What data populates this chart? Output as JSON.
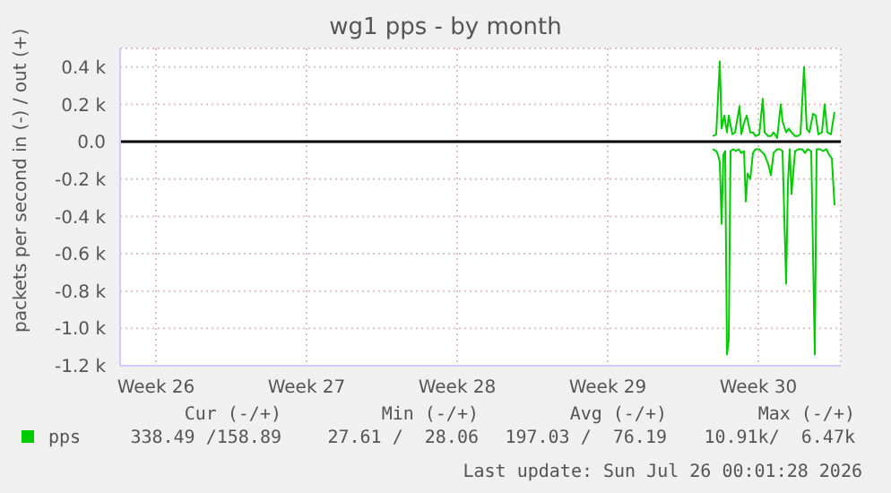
{
  "chart_data": {
    "type": "line",
    "title": "wg1 pps - by month",
    "ylabel": "packets per second in (-) / out (+)",
    "xlim": [
      "2026-06-22T12:00",
      "2026-07-26T00:00"
    ],
    "xticks": [
      {
        "value": "2026-06-24T04:00",
        "label": "Week 26"
      },
      {
        "value": "2026-07-01T04:00",
        "label": "Week 27"
      },
      {
        "value": "2026-07-08T04:00",
        "label": "Week 28"
      },
      {
        "value": "2026-07-15T04:00",
        "label": "Week 29"
      },
      {
        "value": "2026-07-22T04:00",
        "label": "Week 30"
      }
    ],
    "ylim": [
      -1200,
      500
    ],
    "yticks": [
      {
        "value": -1200,
        "label": "-1.2 k"
      },
      {
        "value": -1000,
        "label": "-1.0 k"
      },
      {
        "value": -800,
        "label": "-0.8 k"
      },
      {
        "value": -600,
        "label": "-0.6 k"
      },
      {
        "value": -400,
        "label": "-0.4 k"
      },
      {
        "value": -200,
        "label": "-0.2 k"
      },
      {
        "value": 0,
        "label": "0.0"
      },
      {
        "value": 200,
        "label": "0.2 k"
      },
      {
        "value": 400,
        "label": "0.4 k"
      }
    ],
    "grid": true,
    "legend": "bottom",
    "ref_lines": [
      {
        "axis": "y",
        "value": 0,
        "color": "#000000"
      }
    ],
    "series": [
      {
        "name": "pps",
        "color": "#00cc00",
        "x": [
          "2026-07-20T01:00",
          "2026-07-20T05:00",
          "2026-07-20T09:00",
          "2026-07-20T11:00",
          "2026-07-20T14:00",
          "2026-07-20T17:00",
          "2026-07-20T19:00",
          "2026-07-20T23:00",
          "2026-07-21T02:00",
          "2026-07-21T07:00",
          "2026-07-21T09:00",
          "2026-07-21T12:00",
          "2026-07-21T15:00",
          "2026-07-21T19:00",
          "2026-07-21T22:00",
          "2026-07-22T01:00",
          "2026-07-22T05:00",
          "2026-07-22T09:00",
          "2026-07-22T11:00",
          "2026-07-22T15:00",
          "2026-07-22T18:00",
          "2026-07-22T21:00",
          "2026-07-23T01:00",
          "2026-07-23T05:00",
          "2026-07-23T07:00",
          "2026-07-23T11:00",
          "2026-07-23T14:00",
          "2026-07-23T17:00",
          "2026-07-23T21:00",
          "2026-07-24T00:00",
          "2026-07-24T03:00",
          "2026-07-24T07:00",
          "2026-07-24T10:00",
          "2026-07-24T13:00",
          "2026-07-24T17:00",
          "2026-07-24T20:00",
          "2026-07-24T23:00",
          "2026-07-25T03:00",
          "2026-07-25T06:00",
          "2026-07-25T09:00",
          "2026-07-25T13:00",
          "2026-07-25T17:00"
        ],
        "values": [
          30,
          40,
          430,
          70,
          140,
          50,
          140,
          40,
          50,
          190,
          40,
          100,
          140,
          50,
          50,
          30,
          40,
          230,
          50,
          30,
          30,
          50,
          20,
          200,
          110,
          50,
          70,
          50,
          30,
          30,
          40,
          400,
          70,
          50,
          150,
          140,
          40,
          50,
          200,
          50,
          40,
          160
        ]
      },
      {
        "color": "#00cc00",
        "x": [
          "2026-07-20T01:00",
          "2026-07-20T05:00",
          "2026-07-20T07:00",
          "2026-07-20T09:00",
          "2026-07-20T11:00",
          "2026-07-20T13:00",
          "2026-07-20T15:00",
          "2026-07-20T17:00",
          "2026-07-20T19:00",
          "2026-07-20T21:00",
          "2026-07-21T00:00",
          "2026-07-21T03:00",
          "2026-07-21T06:00",
          "2026-07-21T09:00",
          "2026-07-21T12:00",
          "2026-07-21T14:00",
          "2026-07-21T16:00",
          "2026-07-21T19:00",
          "2026-07-21T22:00",
          "2026-07-22T01:00",
          "2026-07-22T05:00",
          "2026-07-22T09:00",
          "2026-07-22T11:00",
          "2026-07-22T15:00",
          "2026-07-22T18:00",
          "2026-07-22T21:00",
          "2026-07-23T01:00",
          "2026-07-23T04:00",
          "2026-07-23T07:00",
          "2026-07-23T11:00",
          "2026-07-23T13:00",
          "2026-07-23T15:00",
          "2026-07-23T17:00",
          "2026-07-23T21:00",
          "2026-07-24T01:00",
          "2026-07-24T05:00",
          "2026-07-24T08:00",
          "2026-07-24T11:00",
          "2026-07-24T15:00",
          "2026-07-24T19:00",
          "2026-07-24T21:00",
          "2026-07-25T01:00",
          "2026-07-25T04:00",
          "2026-07-25T08:00",
          "2026-07-25T11:00",
          "2026-07-25T14:00",
          "2026-07-25T17:00"
        ],
        "values": [
          -40,
          -50,
          -70,
          -110,
          -440,
          -70,
          -50,
          -1140,
          -1060,
          -50,
          -40,
          -50,
          -40,
          -60,
          -50,
          -320,
          -170,
          -200,
          -60,
          -40,
          -40,
          -60,
          -70,
          -120,
          -180,
          -60,
          -40,
          -40,
          -50,
          -760,
          -220,
          -40,
          -280,
          -50,
          -40,
          -40,
          -60,
          -40,
          -50,
          -1140,
          -40,
          -40,
          -50,
          -40,
          -70,
          -90,
          -340
        ]
      }
    ],
    "annotations": [
      "Cur (-/+)",
      "Min (-/+)",
      "Avg (-/+)",
      "Max (-/+)",
      "338.49 /158.89",
      "27.61 /  28.06",
      "197.03 /  76.19",
      "10.91k/  6.47k",
      "Last update: Sun Jul 26 00:01:28 2026"
    ]
  }
}
